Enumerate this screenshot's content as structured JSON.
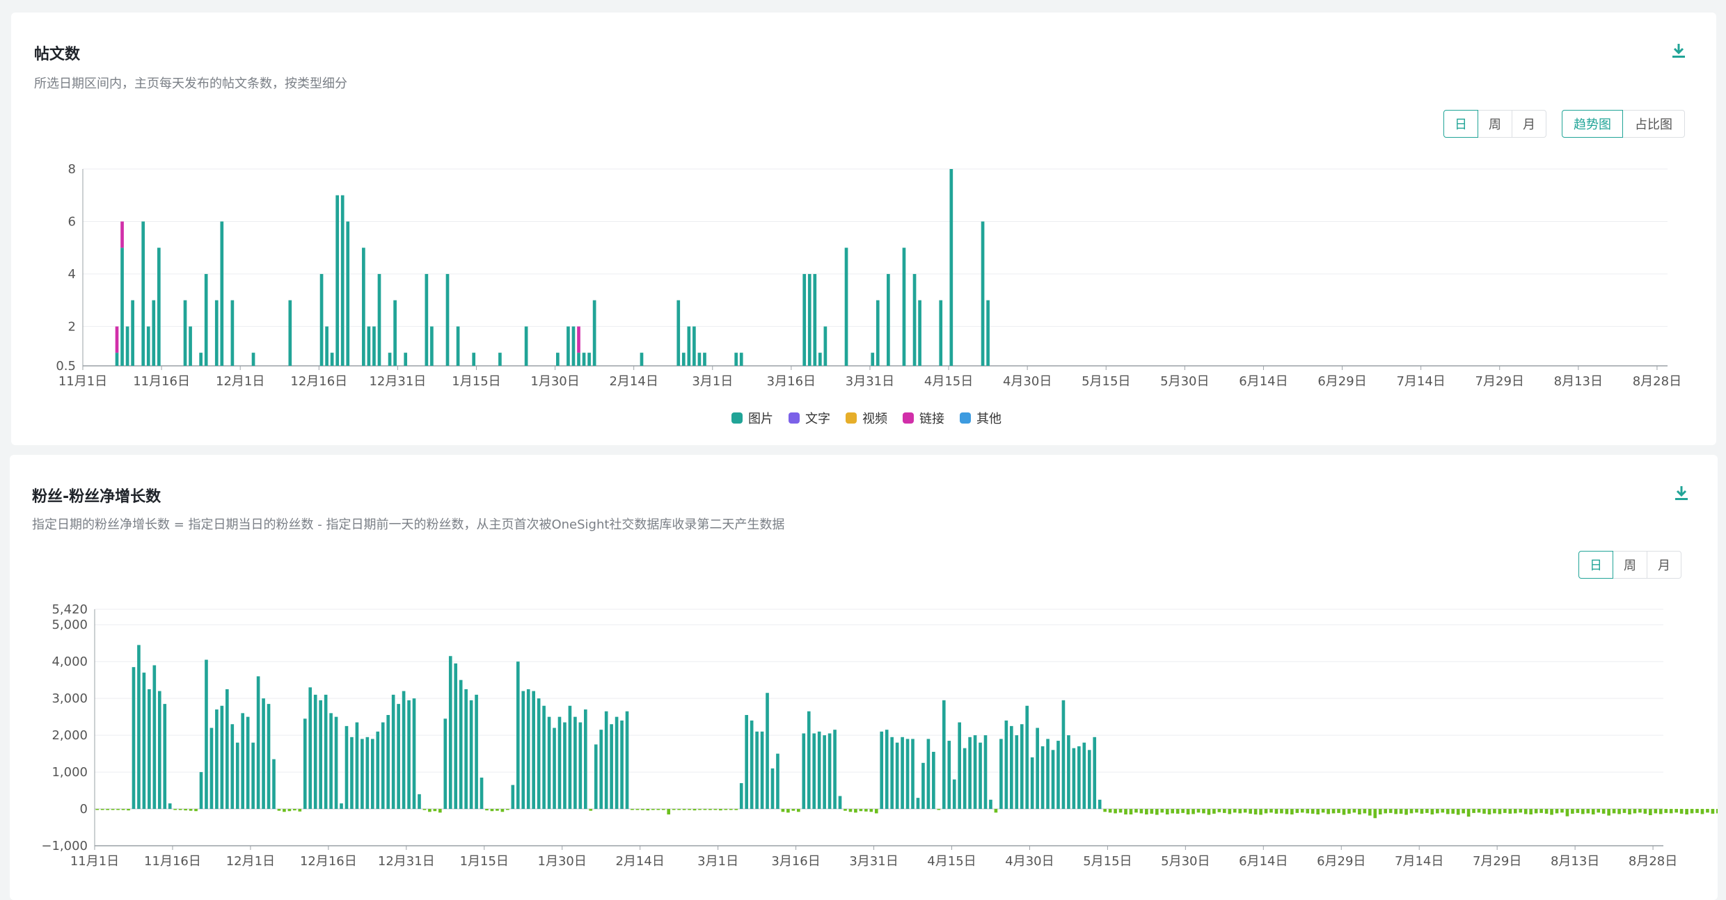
{
  "posts_card": {
    "title": "帖文数",
    "subtitle": "所选日期区间内，主页每天发布的帖文条数，按类型细分",
    "granularity": [
      "日",
      "周",
      "月"
    ],
    "granularity_active": 0,
    "view_modes": [
      "趋势图",
      "占比图"
    ],
    "view_active": 0
  },
  "followers_card": {
    "title": "粉丝-粉丝净增长数",
    "subtitle": "指定日期的粉丝净增长数 = 指定日期当日的粉丝数 - 指定日期前一天的粉丝数，从主页首次被OneSight社交数据库收录第二天产生数据",
    "granularity": [
      "日",
      "周",
      "月"
    ],
    "granularity_active": 0
  },
  "colors": {
    "accent": "#21a497",
    "image": "#21a497",
    "text": "#7b61e8",
    "video": "#e6ae2a",
    "link": "#d12fa9",
    "other": "#3d9be0",
    "negative": "#6cbf1e"
  },
  "chart_data": [
    {
      "type": "bar",
      "stacked": true,
      "x_start": "2023-11-01",
      "x_tick_labels": [
        "11月1日",
        "11月16日",
        "12月1日",
        "12月16日",
        "12月31日",
        "1月15日",
        "1月30日",
        "2月14日",
        "3月1日",
        "3月16日",
        "3月31日",
        "4月15日",
        "4月30日",
        "5月15日",
        "5月30日",
        "6月14日",
        "6月29日",
        "7月14日",
        "7月29日",
        "8月13日",
        "8月28日"
      ],
      "y_ticks": [
        0.5,
        2,
        4,
        6,
        8
      ],
      "ylim": [
        0.5,
        8
      ],
      "legend": [
        "图片",
        "文字",
        "视频",
        "链接",
        "其他"
      ],
      "legend_position": "bottom-center",
      "grid": true,
      "series": [
        {
          "name": "图片",
          "points": [
            [
              6,
              1
            ],
            [
              7,
              5
            ],
            [
              8,
              2
            ],
            [
              9,
              3
            ],
            [
              11,
              6
            ],
            [
              12,
              2
            ],
            [
              13,
              3
            ],
            [
              14,
              5
            ],
            [
              19,
              3
            ],
            [
              20,
              2
            ],
            [
              22,
              1
            ],
            [
              23,
              4
            ],
            [
              25,
              3
            ],
            [
              26,
              6
            ],
            [
              28,
              3
            ],
            [
              32,
              1
            ],
            [
              39,
              3
            ],
            [
              45,
              4
            ],
            [
              46,
              2
            ],
            [
              47,
              1
            ],
            [
              48,
              7
            ],
            [
              49,
              7
            ],
            [
              50,
              6
            ],
            [
              53,
              5
            ],
            [
              54,
              2
            ],
            [
              55,
              2
            ],
            [
              56,
              4
            ],
            [
              58,
              1
            ],
            [
              59,
              3
            ],
            [
              61,
              1
            ],
            [
              65,
              4
            ],
            [
              66,
              2
            ],
            [
              69,
              4
            ],
            [
              71,
              2
            ],
            [
              74,
              1
            ],
            [
              79,
              1
            ],
            [
              84,
              2
            ],
            [
              90,
              1
            ],
            [
              92,
              2
            ],
            [
              93,
              2
            ],
            [
              94,
              1
            ],
            [
              95,
              1
            ],
            [
              96,
              1
            ],
            [
              97,
              3
            ],
            [
              106,
              1
            ],
            [
              113,
              3
            ],
            [
              114,
              1
            ],
            [
              115,
              2
            ],
            [
              116,
              2
            ],
            [
              117,
              1
            ],
            [
              118,
              1
            ],
            [
              124,
              1
            ],
            [
              125,
              1
            ],
            [
              137,
              4
            ],
            [
              138,
              4
            ],
            [
              139,
              4
            ],
            [
              140,
              1
            ],
            [
              141,
              2
            ],
            [
              145,
              5
            ],
            [
              150,
              1
            ],
            [
              151,
              3
            ],
            [
              153,
              4
            ],
            [
              156,
              5
            ],
            [
              158,
              4
            ],
            [
              159,
              3
            ],
            [
              163,
              3
            ],
            [
              165,
              8
            ],
            [
              171,
              6
            ],
            [
              172,
              3
            ]
          ]
        },
        {
          "name": "文字",
          "points": []
        },
        {
          "name": "视频",
          "points": []
        },
        {
          "name": "链接",
          "points": [
            [
              6,
              1
            ],
            [
              7,
              1
            ],
            [
              94,
              1
            ]
          ]
        },
        {
          "name": "其他",
          "points": []
        }
      ],
      "title": ""
    },
    {
      "type": "bar",
      "x_start": "2023-11-01",
      "x_tick_labels": [
        "11月1日",
        "11月16日",
        "12月1日",
        "12月16日",
        "12月31日",
        "1月15日",
        "1月30日",
        "2月14日",
        "3月1日",
        "3月16日",
        "3月31日",
        "4月15日",
        "4月30日",
        "5月15日",
        "5月30日",
        "6月14日",
        "6月29日",
        "7月14日",
        "7月29日",
        "8月13日",
        "8月28日"
      ],
      "y_ticks": [
        "−1,000",
        "0",
        "1,000",
        "2,000",
        "3,000",
        "4,000",
        "5,000",
        "5,420"
      ],
      "ylim": [
        -1000,
        5420
      ],
      "grid": true,
      "series": [
        {
          "name": "",
          "values": [
            -10,
            -20,
            -30,
            -20,
            -10,
            -30,
            -40,
            3850,
            4450,
            3700,
            3250,
            3900,
            3200,
            2850,
            150,
            -20,
            -30,
            -40,
            -50,
            -60,
            1000,
            4050,
            2200,
            2700,
            2800,
            3250,
            2300,
            1800,
            2600,
            2500,
            1800,
            3600,
            3000,
            2850,
            1350,
            -50,
            -80,
            -60,
            -40,
            -70,
            2450,
            3300,
            3100,
            2950,
            3100,
            2600,
            2500,
            150,
            2250,
            1950,
            2350,
            1900,
            1950,
            1900,
            2100,
            2350,
            2550,
            3100,
            2850,
            3200,
            2950,
            3000,
            400,
            -30,
            -80,
            -60,
            -100,
            2450,
            4150,
            3950,
            3500,
            3250,
            2950,
            3100,
            850,
            -40,
            -60,
            -50,
            -80,
            -20,
            650,
            4000,
            3200,
            3250,
            3200,
            3000,
            2800,
            2500,
            2200,
            2500,
            2350,
            2800,
            2500,
            2350,
            2700,
            -50,
            1750,
            2150,
            2650,
            2300,
            2500,
            2400,
            2650,
            -10,
            -20,
            -30,
            -40,
            -20,
            -10,
            -20,
            -150,
            -20,
            -10,
            -30,
            -20,
            -40,
            -20,
            -10,
            -30,
            -20,
            -40,
            -20,
            -10,
            -30,
            700,
            2550,
            2400,
            2100,
            2100,
            3150,
            1100,
            1500,
            -80,
            -100,
            -50,
            -80,
            2050,
            2650,
            2050,
            2100,
            2000,
            2050,
            2150,
            350,
            -50,
            -80,
            -100,
            -60,
            -70,
            -80,
            -120,
            2100,
            2150,
            1950,
            1800,
            1950,
            1900,
            1900,
            300,
            1250,
            1900,
            1550,
            -20,
            2950,
            1850,
            800,
            2350,
            1650,
            1950,
            2000,
            1800,
            2000,
            250,
            -100,
            1900,
            2400,
            2250,
            2000,
            2300,
            2800,
            1400,
            2200,
            1700,
            1900,
            1600,
            1850,
            2950,
            2000,
            1650,
            1700,
            1800,
            1600,
            1950,
            250,
            -80,
            -100,
            -120,
            -100,
            -150,
            -150,
            -100,
            -120,
            -150,
            -130,
            -160,
            -100,
            -150,
            -120,
            -130,
            -110,
            -150,
            -140,
            -100,
            -120,
            -160,
            -130,
            -90,
            -110,
            -140,
            -100,
            -120,
            -100,
            -130,
            -150,
            -160,
            -120,
            -100,
            -130,
            -120,
            -140,
            -150,
            -110,
            -100,
            -120,
            -130,
            -150,
            -100,
            -140,
            -120,
            -110,
            -160,
            -130,
            -100,
            -150,
            -120,
            -180,
            -250,
            -150,
            -120,
            -110,
            -140,
            -130,
            -160,
            -120,
            -100,
            -130,
            -110,
            -150,
            -120,
            -100,
            -140,
            -130,
            -160,
            -120,
            -210,
            -110,
            -100,
            -130,
            -150,
            -120,
            -140,
            -110,
            -130,
            -120,
            -100,
            -140,
            -150,
            -120,
            -110,
            -130,
            -160,
            -120,
            -100,
            -200,
            -130,
            -110,
            -140,
            -120,
            -150,
            -100,
            -130,
            -180,
            -120,
            -140,
            -110,
            -150,
            -120,
            -100,
            -130,
            -170,
            -120,
            -140,
            -110,
            -120,
            -100,
            -130,
            -150,
            -120,
            -110,
            -140,
            -100,
            -130,
            -120,
            -110,
            -150,
            -120,
            -100,
            -130
          ]
        }
      ],
      "title": ""
    }
  ]
}
